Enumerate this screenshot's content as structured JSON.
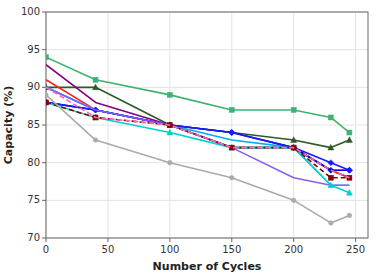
{
  "chart_data": {
    "type": "line",
    "xlabel": "Number of Cycles",
    "ylabel": "Capacity (%)",
    "xlim": [
      0,
      260
    ],
    "ylim": [
      70,
      100
    ],
    "xticks": [
      0,
      50,
      100,
      150,
      200,
      250
    ],
    "yticks": [
      70,
      75,
      80,
      85,
      90,
      95,
      100
    ],
    "grid": true,
    "series": [
      {
        "color": "#3cb371",
        "marker": "square",
        "line_style": "solid",
        "x": [
          0,
          40,
          100,
          150,
          200,
          230,
          245
        ],
        "values": [
          94,
          91,
          89,
          87,
          87,
          86,
          84
        ]
      },
      {
        "color": "#2d5a27",
        "marker": "triangle",
        "line_style": "solid",
        "x": [
          0,
          40,
          100,
          200,
          230,
          245
        ],
        "values": [
          90,
          90,
          85,
          83,
          82,
          83
        ]
      },
      {
        "color": "#800080",
        "marker": "none",
        "line_style": "solid",
        "x": [
          0,
          40,
          100,
          150,
          200,
          230,
          245
        ],
        "values": [
          93,
          88,
          85,
          82,
          82,
          79,
          78
        ]
      },
      {
        "color": "#ff2020",
        "marker": "none",
        "line_style": "solid",
        "x": [
          0,
          40,
          100,
          150,
          200,
          230,
          245
        ],
        "values": [
          91,
          87,
          85,
          82,
          82,
          79,
          78
        ]
      },
      {
        "color": "#00aaff",
        "marker": "none",
        "line_style": "solid",
        "x": [
          0,
          40,
          100,
          150,
          200,
          230,
          245
        ],
        "values": [
          90,
          87,
          85,
          83,
          82,
          79,
          79
        ]
      },
      {
        "color": "#00e5e5",
        "marker": "none",
        "line_style": "solid",
        "x": [
          0,
          40,
          100,
          150,
          200,
          230,
          245
        ],
        "values": [
          90,
          87,
          85,
          82,
          82,
          77,
          77
        ]
      },
      {
        "color": "#0000cd",
        "marker": "diamond",
        "line_style": "solid",
        "x": [
          0,
          40,
          100,
          150,
          200,
          230,
          245
        ],
        "values": [
          88,
          87,
          85,
          84,
          82,
          79,
          79
        ]
      },
      {
        "color": "#1a1aff",
        "marker": "diamond",
        "line_style": "solid",
        "x": [
          0,
          40,
          100,
          150,
          200,
          230,
          245
        ],
        "values": [
          88,
          87,
          85,
          84,
          82,
          80,
          79
        ]
      },
      {
        "color": "#8b5cf6",
        "marker": "none",
        "line_style": "solid",
        "x": [
          0,
          40,
          100,
          150,
          200,
          230,
          245
        ],
        "values": [
          90,
          87,
          85,
          82,
          78,
          77,
          77
        ]
      },
      {
        "color": "#00d0d0",
        "marker": "triangle",
        "line_style": "solid",
        "x": [
          0,
          40,
          100,
          150,
          200,
          230,
          245
        ],
        "values": [
          88,
          86,
          84,
          82,
          82,
          77,
          76
        ]
      },
      {
        "color": "#8b0000",
        "marker": "square",
        "line_style": "dashed",
        "x": [
          0,
          40,
          100,
          150,
          200,
          230,
          245
        ],
        "values": [
          88,
          86,
          85,
          82,
          82,
          78,
          78
        ]
      },
      {
        "color": "#ff69b4",
        "marker": "none",
        "line_style": "dashed",
        "x": [
          0,
          40,
          100,
          150,
          200,
          230,
          245
        ],
        "values": [
          90,
          86,
          85,
          82,
          82,
          79,
          78
        ]
      },
      {
        "color": "#aaaaaa",
        "marker": "circle",
        "line_style": "solid",
        "x": [
          0,
          40,
          100,
          150,
          200,
          230,
          245
        ],
        "values": [
          89,
          83,
          80,
          78,
          75,
          72,
          73
        ]
      }
    ]
  }
}
